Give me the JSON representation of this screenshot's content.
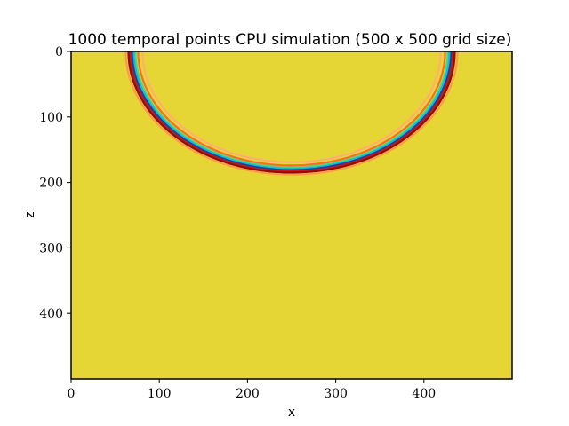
{
  "chart_data": {
    "type": "heatmap",
    "title": "1000 temporal points CPU simulation (500 x 500 grid size)",
    "xlabel": "x",
    "ylabel": "z",
    "xlim": [
      0,
      500
    ],
    "ylim": [
      500,
      0
    ],
    "x_ticks": [
      0,
      100,
      200,
      300,
      400
    ],
    "y_ticks": [
      0,
      100,
      200,
      300,
      400
    ],
    "grid": false,
    "colormap": "jet",
    "background_value_color": "#e5d636",
    "wavefront": {
      "center": {
        "x": 250,
        "z": 0
      },
      "radius": 180,
      "rings": [
        {
          "offset": -11,
          "color": "#ffb070"
        },
        {
          "offset": -6,
          "color": "#ff6a2a"
        },
        {
          "offset": -3,
          "color": "#3fe07a"
        },
        {
          "offset": -1,
          "color": "#19b4e0"
        },
        {
          "offset": 1,
          "color": "#1a3fa8"
        },
        {
          "offset": 3,
          "color": "#c81a0a"
        },
        {
          "offset": 5,
          "color": "#8a0e05"
        },
        {
          "offset": 8,
          "color": "#ff9a4a"
        }
      ]
    }
  }
}
